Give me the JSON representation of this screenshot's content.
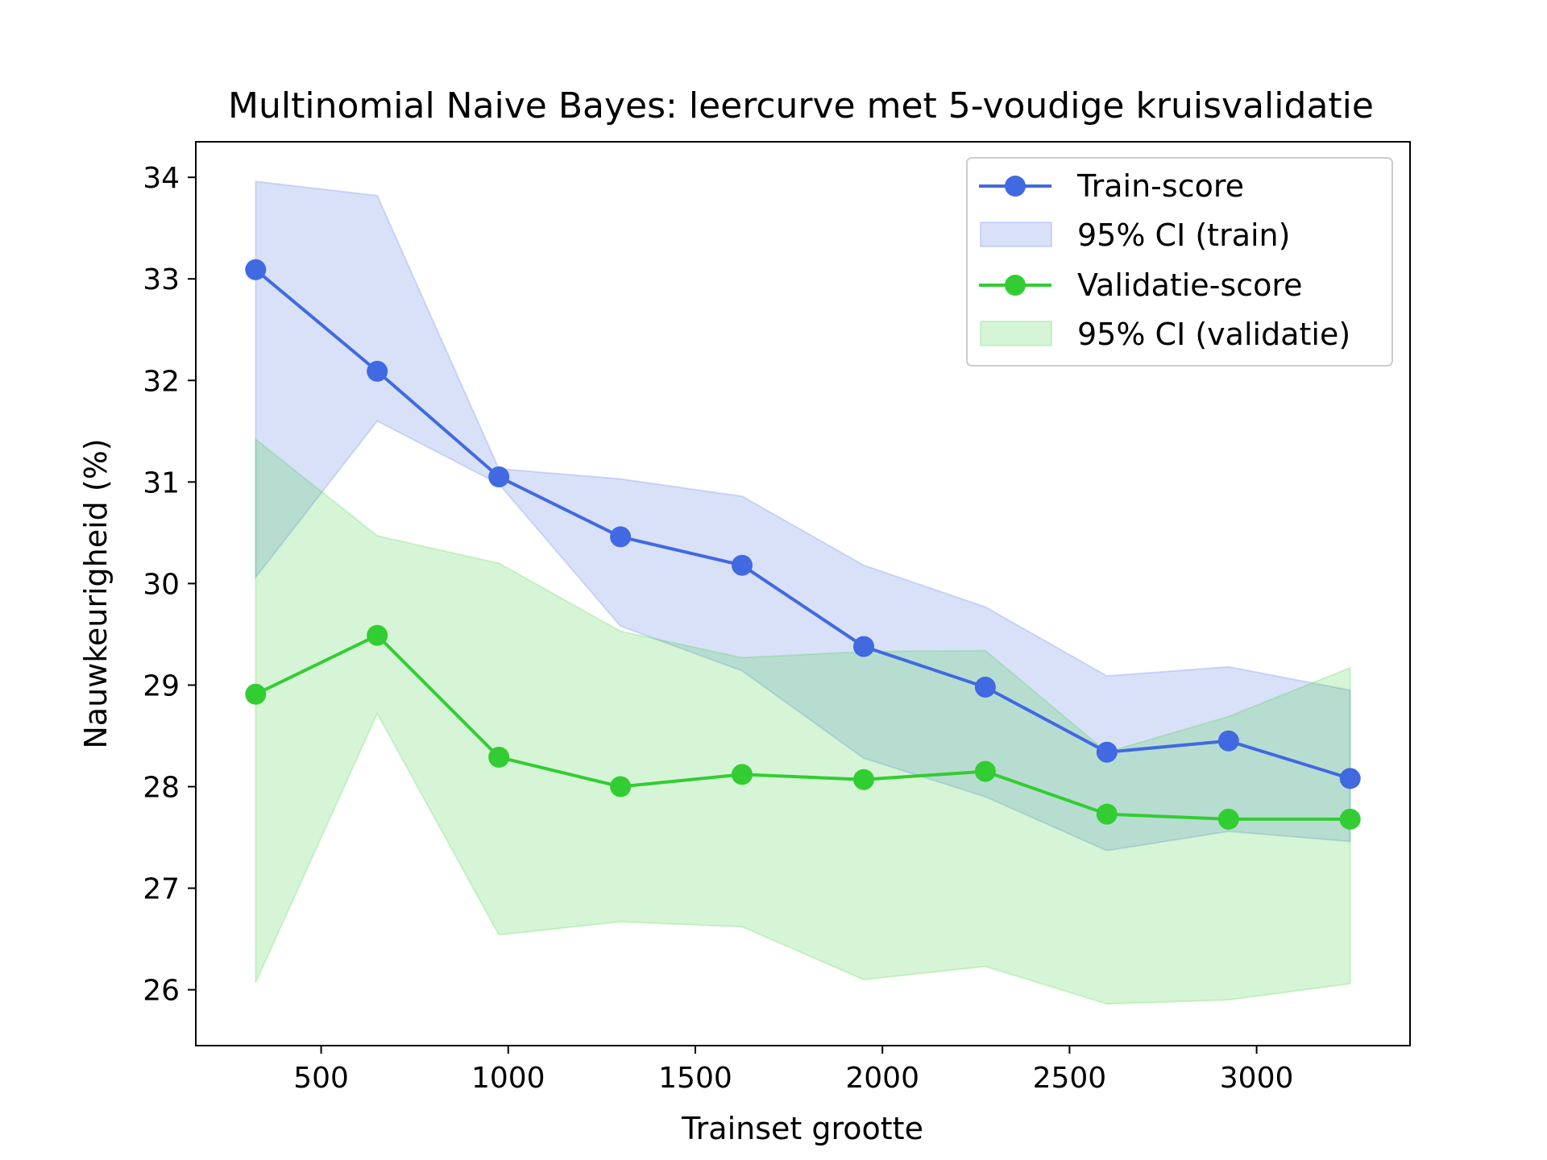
{
  "chart_data": {
    "type": "line",
    "title": "Multinomial Naive Bayes: leercurve met 5-voudige kruisvalidatie",
    "xlabel": "Trainset grootte",
    "ylabel": "Nauwkeurigheid (%)",
    "xlim": [
      165,
      3410
    ],
    "ylim": [
      25.45,
      34.35
    ],
    "xticks": [
      500,
      1000,
      1500,
      2000,
      2500,
      3000
    ],
    "yticks": [
      26,
      27,
      28,
      29,
      30,
      31,
      32,
      33,
      34
    ],
    "grid": false,
    "legend_position": "top-right",
    "x": [
      325,
      650,
      975,
      1300,
      1625,
      1950,
      2275,
      2600,
      2925,
      3250
    ],
    "series": [
      {
        "name": "Train-score",
        "color": "#4169e1",
        "values": [
          33.09,
          32.09,
          31.05,
          30.46,
          30.18,
          29.38,
          28.98,
          28.34,
          28.45,
          28.08
        ]
      },
      {
        "name": "Validatie-score",
        "color": "#32cd32",
        "values": [
          28.91,
          29.49,
          28.29,
          28.0,
          28.12,
          28.07,
          28.15,
          27.73,
          27.68,
          27.68
        ]
      }
    ],
    "bands": [
      {
        "name": "95% CI (train)",
        "color": "#4169e1",
        "lower": [
          30.06,
          31.6,
          30.98,
          29.58,
          29.14,
          28.28,
          27.9,
          27.37,
          27.56,
          27.46
        ],
        "upper": [
          33.96,
          33.82,
          31.13,
          31.03,
          30.86,
          30.18,
          29.77,
          29.09,
          29.18,
          28.95
        ]
      },
      {
        "name": "95% CI (validatie)",
        "color": "#32cd32",
        "lower": [
          26.07,
          28.72,
          26.54,
          26.67,
          26.62,
          26.1,
          26.23,
          25.86,
          25.9,
          26.06
        ],
        "upper": [
          31.42,
          30.47,
          30.2,
          29.53,
          29.27,
          29.33,
          29.34,
          28.34,
          28.69,
          29.17
        ]
      }
    ],
    "legend": [
      "Train-score",
      "95% CI (train)",
      "Validatie-score",
      "95% CI (validatie)"
    ]
  }
}
